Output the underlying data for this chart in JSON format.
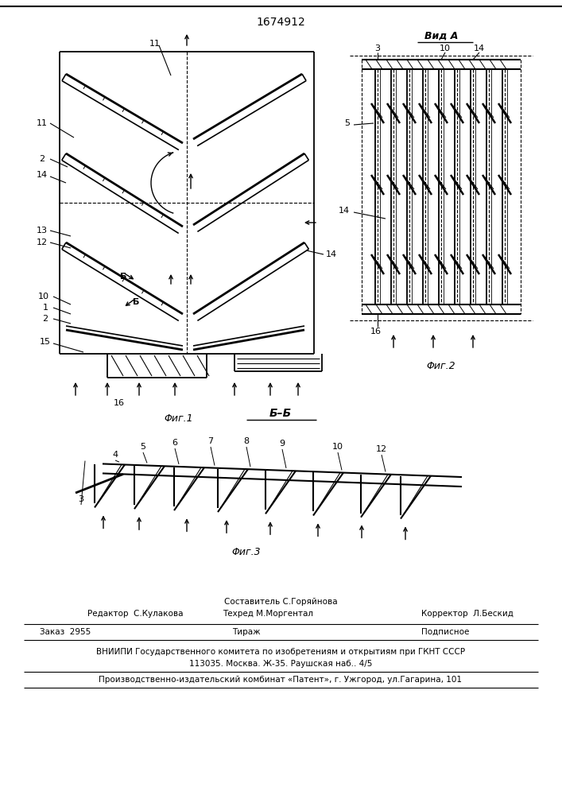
{
  "title": "1674912",
  "fig1_caption": "Φиг.1",
  "fig2_caption": "Φиг.2",
  "fig3_caption": "Φиг.3",
  "vid_a_label": "Вид A",
  "bb_label": "Б–Б",
  "editor_line": "Редактор  С.Кулакова",
  "composer_line": "Составитель С.Горяйнова",
  "techred_line": "Техред М.Моргентал",
  "corrector_line": "Корректор  Л.Бескид",
  "order_line": "Заказ  2955",
  "tirazh_line": "Тираж",
  "podpisnoe_line": "Подписное",
  "vniiipi_line": "ВНИИПИ Государственного комитета по изобретениям и открытиям при ГКНТ СССР",
  "address_line": "113035. Москва. Ж-35. Раушская наб.. 4/5",
  "publisher_line": "Производственно-издательский комбинат «Патент», г. Ужгород, ул.Гагарина, 101",
  "bg_color": "#ffffff",
  "line_color": "#000000"
}
